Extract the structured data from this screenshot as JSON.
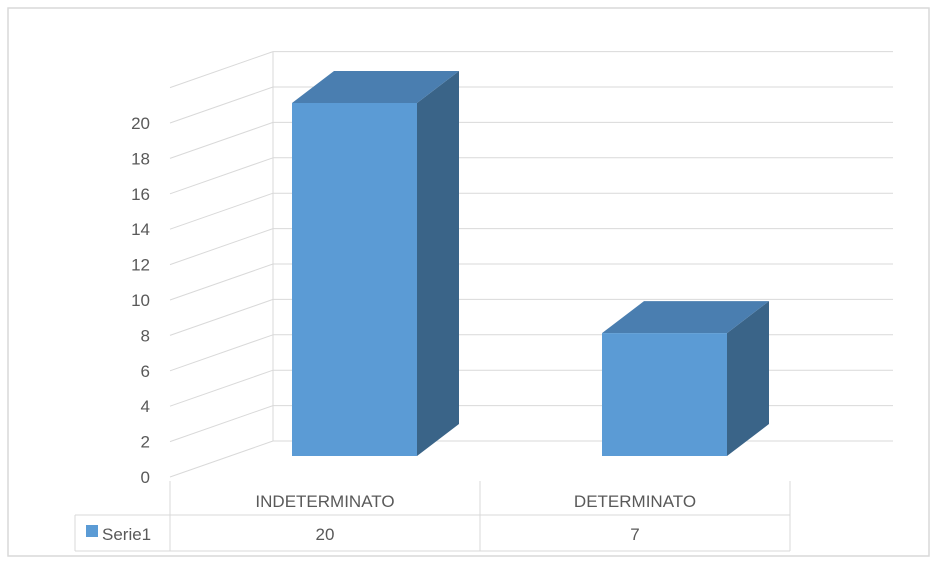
{
  "chart_data": {
    "type": "bar",
    "three_d": true,
    "categories": [
      "INDETERMINATO",
      "DETERMINATO"
    ],
    "series": [
      {
        "name": "Serie1",
        "values": [
          20,
          7
        ]
      }
    ],
    "yticks": [
      0,
      2,
      4,
      6,
      8,
      10,
      12,
      14,
      16,
      18,
      20
    ],
    "ylim": [
      0,
      20
    ],
    "grid": true,
    "legend": "data-table",
    "data_table": true
  },
  "colors": {
    "bar_front": "#5b9bd5",
    "bar_top": "#4a7eb0",
    "bar_side": "#3a6488",
    "grid": "#d9d9d9",
    "axis_text": "#595959",
    "border": "#d9d9d9"
  }
}
